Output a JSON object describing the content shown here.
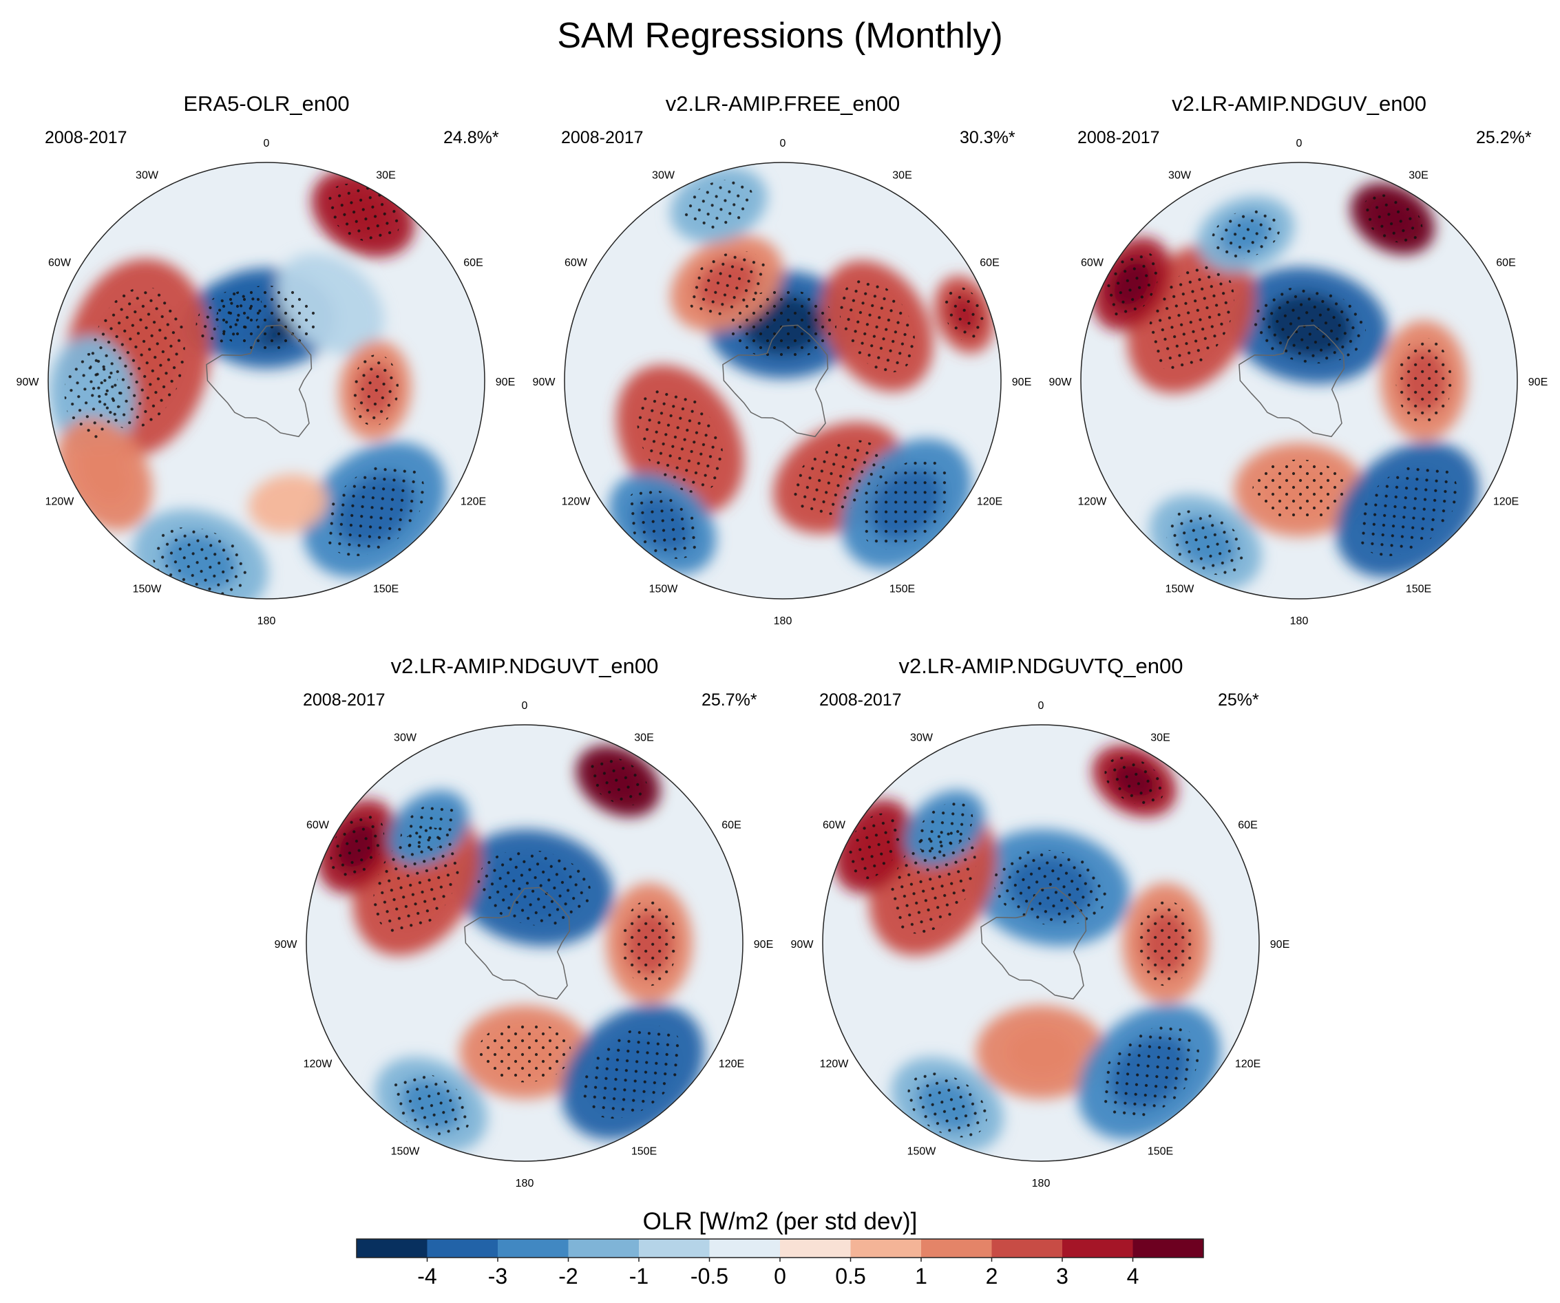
{
  "figure": {
    "title": "SAM Regressions (Monthly)"
  },
  "chart_data": {
    "type": "heatmap",
    "title": "SAM Regressions (Monthly)",
    "projection": "south polar stereographic",
    "longitude_labels": [
      "0",
      "30E",
      "60E",
      "90E",
      "120E",
      "150E",
      "180",
      "150W",
      "120W",
      "90W",
      "60W",
      "30W"
    ],
    "panels": [
      {
        "name": "ERA5-OLR_en00",
        "period": "2008-2017",
        "variance": "24.8%*",
        "features": [
          {
            "lon": 0,
            "lat": -70,
            "value": -4.0,
            "size": 14
          },
          {
            "lon": -30,
            "lat": -66,
            "value": -3.2,
            "size": 10
          },
          {
            "lon": 40,
            "lat": -58,
            "value": -0.8,
            "size": 12
          },
          {
            "lon": -80,
            "lat": -48,
            "value": 2.0,
            "size": 20
          },
          {
            "lon": 95,
            "lat": -55,
            "value": 1.6,
            "size": 10
          },
          {
            "lon": 140,
            "lat": -36,
            "value": -3.0,
            "size": 16
          },
          {
            "lon": 30,
            "lat": -28,
            "value": 3.0,
            "size": 11
          },
          {
            "lon": -95,
            "lat": -34,
            "value": -1.5,
            "size": 12
          },
          {
            "lon": -160,
            "lat": -28,
            "value": -2.0,
            "size": 14
          },
          {
            "lon": -120,
            "lat": -30,
            "value": 1.2,
            "size": 12
          },
          {
            "lon": 170,
            "lat": -50,
            "value": 0.9,
            "size": 8
          }
        ]
      },
      {
        "name": "v2.LR-AMIP.FREE_en00",
        "period": "2008-2017",
        "variance": "30.3%*",
        "features": [
          {
            "lon": 0,
            "lat": -72,
            "value": -3.5,
            "size": 15
          },
          {
            "lon": 60,
            "lat": -55,
            "value": 2.2,
            "size": 14
          },
          {
            "lon": 150,
            "lat": -54,
            "value": 2.0,
            "size": 14
          },
          {
            "lon": -120,
            "lat": -52,
            "value": 2.0,
            "size": 16
          },
          {
            "lon": -30,
            "lat": -54,
            "value": 1.6,
            "size": 12
          },
          {
            "lon": 135,
            "lat": -34,
            "value": -3.0,
            "size": 15
          },
          {
            "lon": -140,
            "lat": -30,
            "value": -2.6,
            "size": 12
          },
          {
            "lon": -20,
            "lat": -30,
            "value": -1.6,
            "size": 10
          },
          {
            "lon": 70,
            "lat": -28,
            "value": 2.8,
            "size": 8
          }
        ]
      },
      {
        "name": "v2.LR-AMIP.NDGUV_en00",
        "period": "2008-2017",
        "variance": "25.2%*",
        "features": [
          {
            "lon": 10,
            "lat": -72,
            "value": -3.4,
            "size": 16
          },
          {
            "lon": -60,
            "lat": -50,
            "value": 2.2,
            "size": 16
          },
          {
            "lon": 90,
            "lat": -50,
            "value": 1.8,
            "size": 12
          },
          {
            "lon": 180,
            "lat": -55,
            "value": 1.5,
            "size": 13
          },
          {
            "lon": 140,
            "lat": -36,
            "value": -3.2,
            "size": 16
          },
          {
            "lon": 30,
            "lat": -30,
            "value": 4.0,
            "size": 9
          },
          {
            "lon": -60,
            "lat": -28,
            "value": 3.2,
            "size": 10
          },
          {
            "lon": -20,
            "lat": -40,
            "value": -2.0,
            "size": 10
          },
          {
            "lon": -150,
            "lat": -30,
            "value": -1.8,
            "size": 12
          }
        ]
      },
      {
        "name": "v2.LR-AMIP.NDGUVT_en00",
        "period": "2008-2017",
        "variance": "25.7%*",
        "features": [
          {
            "lon": 10,
            "lat": -72,
            "value": -3.2,
            "size": 16
          },
          {
            "lon": -60,
            "lat": -50,
            "value": 2.0,
            "size": 16
          },
          {
            "lon": 90,
            "lat": -50,
            "value": 1.8,
            "size": 12
          },
          {
            "lon": 180,
            "lat": -55,
            "value": 1.5,
            "size": 13
          },
          {
            "lon": 140,
            "lat": -36,
            "value": -3.2,
            "size": 16
          },
          {
            "lon": 30,
            "lat": -30,
            "value": 4.0,
            "size": 9
          },
          {
            "lon": -60,
            "lat": -28,
            "value": 3.6,
            "size": 10
          },
          {
            "lon": -40,
            "lat": -42,
            "value": -2.4,
            "size": 9
          },
          {
            "lon": -150,
            "lat": -30,
            "value": -1.8,
            "size": 12
          }
        ]
      },
      {
        "name": "v2.LR-AMIP.NDGUVTQ_en00",
        "period": "2008-2017",
        "variance": "25%*",
        "features": [
          {
            "lon": 10,
            "lat": -72,
            "value": -3.0,
            "size": 16
          },
          {
            "lon": -60,
            "lat": -50,
            "value": 2.2,
            "size": 16
          },
          {
            "lon": 90,
            "lat": -50,
            "value": 1.7,
            "size": 12
          },
          {
            "lon": 180,
            "lat": -55,
            "value": 1.4,
            "size": 13
          },
          {
            "lon": 140,
            "lat": -36,
            "value": -3.0,
            "size": 16
          },
          {
            "lon": 30,
            "lat": -30,
            "value": 3.4,
            "size": 9
          },
          {
            "lon": -60,
            "lat": -28,
            "value": 3.0,
            "size": 10
          },
          {
            "lon": -40,
            "lat": -42,
            "value": -2.2,
            "size": 9
          },
          {
            "lon": -150,
            "lat": -30,
            "value": -1.8,
            "size": 12
          }
        ]
      }
    ],
    "colorbar": {
      "label": "OLR [W/m2 (per std dev)]",
      "ticks": [
        "-4",
        "-3",
        "-2",
        "-1",
        "-0.5",
        "0",
        "0.5",
        "1",
        "2",
        "3",
        "4"
      ],
      "levels": [
        -4,
        -3,
        -2,
        -1,
        -0.5,
        0,
        0.5,
        1,
        2,
        3,
        4
      ],
      "colors": [
        "#08305f",
        "#2263a8",
        "#4188c2",
        "#7fb4d7",
        "#b5d4e8",
        "#e2edf5",
        "#f9e1d5",
        "#f4b497",
        "#e48468",
        "#c84c45",
        "#a51527",
        "#6d0020"
      ]
    }
  }
}
